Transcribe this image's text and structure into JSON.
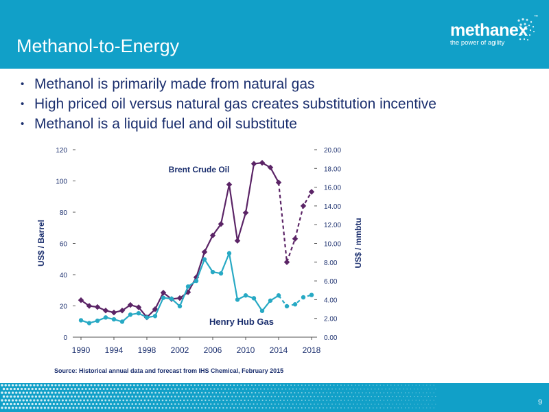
{
  "slide": {
    "title": "Methanol-to-Energy",
    "bullets": [
      "Methanol is primarily made from natural gas",
      "High priced oil versus natural gas creates substitution incentive",
      "Methanol is a liquid fuel and oil substitute"
    ],
    "source": "Source: Historical annual data and forecast from IHS Chemical, February 2015",
    "page_number": "9",
    "logo": {
      "word": "methanex",
      "tagline": "the power of agility",
      "trademark": "™"
    },
    "colors": {
      "header": "#11a0c8",
      "text": "#1b2f6e",
      "oil": "#5b2466",
      "gas": "#27a9c4"
    }
  },
  "chart_data": {
    "type": "line",
    "x_ticks": [
      "1990",
      "1994",
      "1998",
      "2002",
      "2006",
      "2010",
      "2014",
      "2018"
    ],
    "xlim": [
      1989,
      2019
    ],
    "ylabel_left": "US$ / Barrel",
    "ylabel_right": "US$ / mmbtu",
    "ylim_left": [
      0,
      120
    ],
    "ylim_right": [
      0,
      20
    ],
    "y_ticks_left": [
      "0",
      "20",
      "40",
      "60",
      "80",
      "100",
      "120"
    ],
    "y_ticks_right": [
      "0.00",
      "2.00",
      "4.00",
      "6.00",
      "8.00",
      "10.00",
      "12.00",
      "14.00",
      "16.00",
      "18.00",
      "20.00"
    ],
    "grid": false,
    "series": [
      {
        "name": "Brent Crude Oil",
        "axis": "left",
        "color": "#5b2466",
        "historical_x": [
          1990,
          1991,
          1992,
          1993,
          1994,
          1995,
          1996,
          1997,
          1998,
          1999,
          2000,
          2001,
          2002,
          2003,
          2004,
          2005,
          2006,
          2007,
          2008,
          2009,
          2010,
          2011,
          2012,
          2013,
          2014
        ],
        "historical_y": [
          23.7,
          20.0,
          19.3,
          17.0,
          15.8,
          17.0,
          20.6,
          19.1,
          12.7,
          17.9,
          28.5,
          24.4,
          25.0,
          28.8,
          38.3,
          54.5,
          65.1,
          72.4,
          97.7,
          61.7,
          79.6,
          111.0,
          111.6,
          108.6,
          99.0
        ],
        "forecast_x": [
          2014,
          2015,
          2016,
          2017,
          2018
        ],
        "forecast_y": [
          99.0,
          48.0,
          63.0,
          84.0,
          93.0
        ]
      },
      {
        "name": "Henry Hub Gas",
        "axis": "right",
        "color": "#27a9c4",
        "historical_x": [
          1990,
          1991,
          1992,
          1993,
          1994,
          1995,
          1996,
          1997,
          1998,
          1999,
          2000,
          2001,
          2002,
          2003,
          2004,
          2005,
          2006,
          2007,
          2008,
          2009,
          2010,
          2011,
          2012,
          2013,
          2014
        ],
        "historical_y": [
          1.8,
          1.5,
          1.75,
          2.1,
          1.9,
          1.65,
          2.4,
          2.55,
          2.1,
          2.25,
          4.2,
          4.1,
          3.3,
          5.4,
          6.0,
          8.3,
          6.95,
          6.8,
          8.95,
          4.0,
          4.45,
          4.15,
          2.8,
          3.9,
          4.45
        ],
        "forecast_x": [
          2014,
          2015,
          2016,
          2017,
          2018
        ],
        "forecast_y": [
          4.45,
          3.3,
          3.5,
          4.25,
          4.5
        ]
      }
    ]
  }
}
